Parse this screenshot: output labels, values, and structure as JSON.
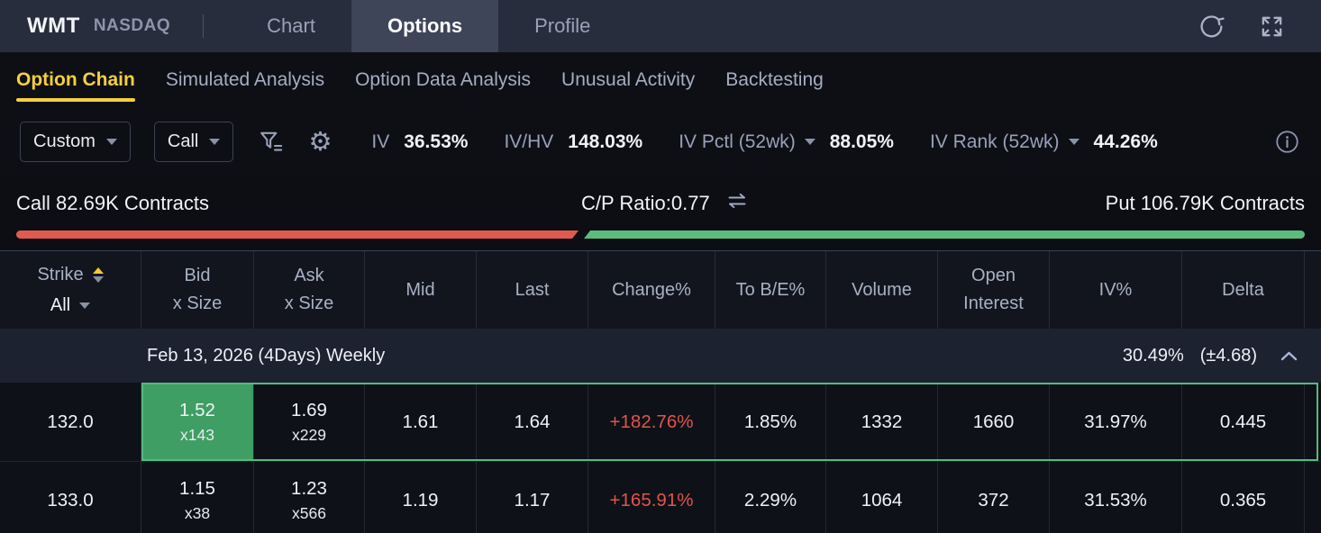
{
  "topbar": {
    "symbol": "WMT",
    "exchange": "NASDAQ",
    "tabs": [
      {
        "label": "Chart"
      },
      {
        "label": "Options"
      },
      {
        "label": "Profile"
      }
    ]
  },
  "subtabs": [
    {
      "label": "Option Chain"
    },
    {
      "label": "Simulated Analysis"
    },
    {
      "label": "Option Data Analysis"
    },
    {
      "label": "Unusual Activity"
    },
    {
      "label": "Backtesting"
    }
  ],
  "toolbar": {
    "strategy_dropdown": "Custom",
    "side_dropdown": "Call",
    "stats": [
      {
        "label": "IV",
        "value": "36.53%"
      },
      {
        "label": "IV/HV",
        "value": "148.03%"
      },
      {
        "label": "IV Pctl (52wk)",
        "value": "88.05%"
      },
      {
        "label": "IV Rank (52wk)",
        "value": "44.26%"
      }
    ]
  },
  "ratio": {
    "call_label": "Call 82.69K Contracts",
    "cp_label": "C/P Ratio:0.77",
    "put_label": "Put 106.79K Contracts",
    "call_contracts_k": 82.69,
    "put_contracts_k": 106.79,
    "cp_ratio": 0.77,
    "colors": {
      "call_bar": "#e15a4e",
      "put_bar": "#5abd7d"
    }
  },
  "table": {
    "strike_label": "Strike",
    "strike_filter": "All",
    "columns": [
      {
        "line1": "Bid",
        "line2": "x Size"
      },
      {
        "line1": "Ask",
        "line2": "x Size"
      },
      {
        "line1": "Mid"
      },
      {
        "line1": "Last"
      },
      {
        "line1": "Change%"
      },
      {
        "line1": "To B/E%"
      },
      {
        "line1": "Volume"
      },
      {
        "line1": "Open",
        "line2": "Interest"
      },
      {
        "line1": "IV%"
      },
      {
        "line1": "Delta"
      }
    ],
    "expiration": {
      "label": "Feb 13, 2026 (4Days) Weekly",
      "iv": "30.49%",
      "expected_move": "(±4.68)"
    },
    "rows": [
      {
        "strike": "132.0",
        "bid": "1.52",
        "bid_size": "x143",
        "ask": "1.69",
        "ask_size": "x229",
        "mid": "1.61",
        "last": "1.64",
        "change": "+182.76%",
        "to_be": "1.85%",
        "volume": "1332",
        "open_interest": "1660",
        "iv": "31.97%",
        "delta": "0.445",
        "selected": true
      },
      {
        "strike": "133.0",
        "bid": "1.15",
        "bid_size": "x38",
        "ask": "1.23",
        "ask_size": "x566",
        "mid": "1.19",
        "last": "1.17",
        "change": "+165.91%",
        "to_be": "2.29%",
        "volume": "1064",
        "open_interest": "372",
        "iv": "31.53%",
        "delta": "0.365",
        "selected": false
      }
    ],
    "accent_colors": {
      "selected_border": "#55bb7e",
      "bid_highlight": "#3f9e63",
      "change_negative": "#e1544a",
      "tab_yellow": "#f6cf3e"
    }
  }
}
